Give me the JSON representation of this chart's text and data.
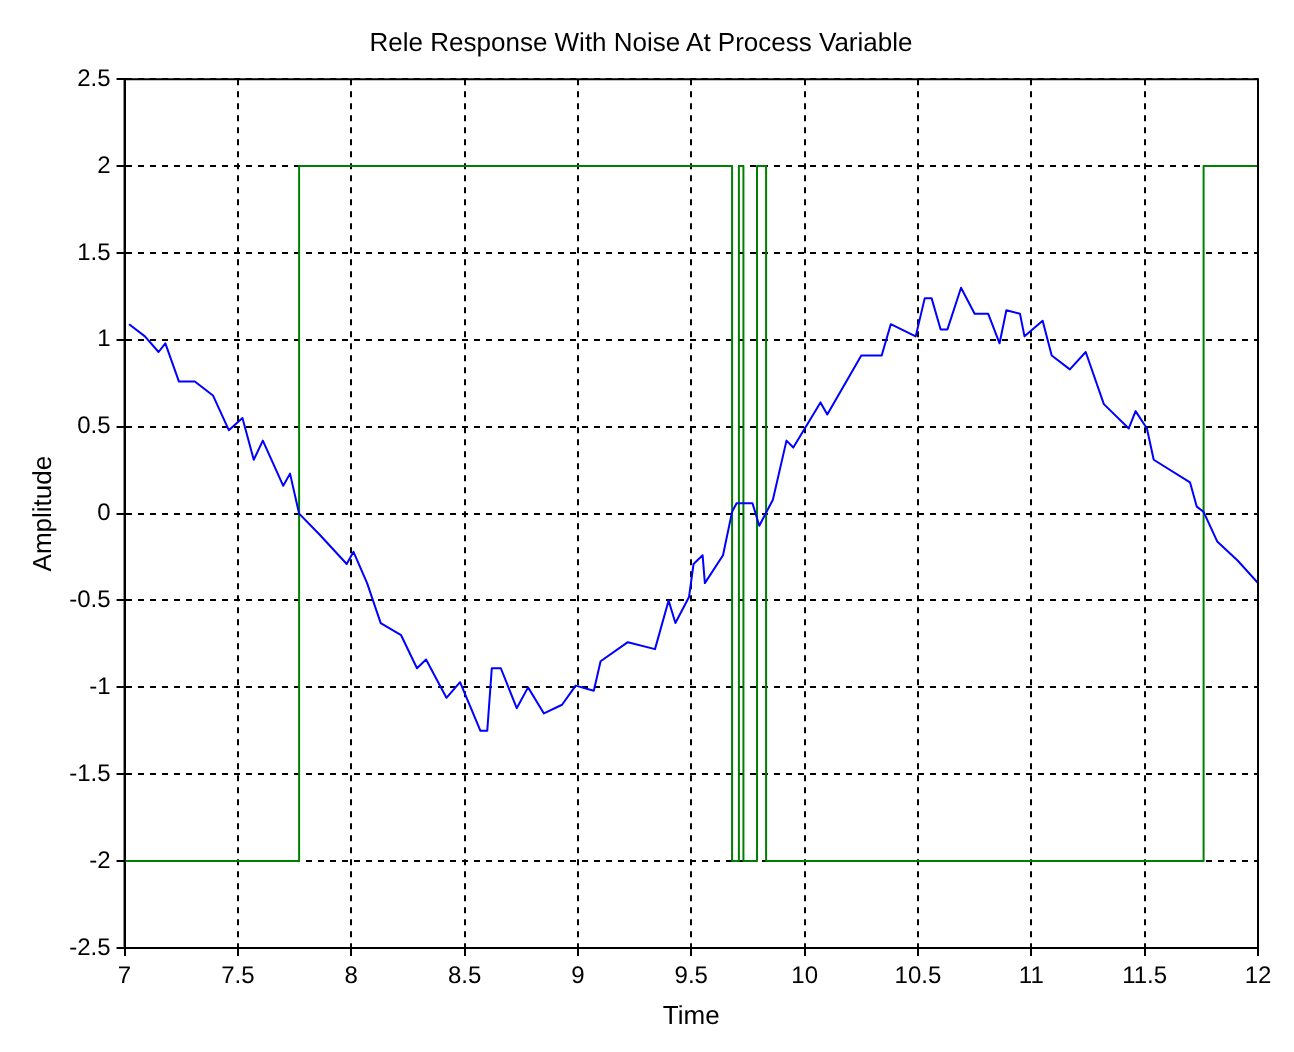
{
  "chart_data": {
    "type": "line",
    "title": "Rele Response With Noise At Process Variable",
    "xlabel": "Time",
    "ylabel": "Amplitude",
    "xlim": [
      7,
      12
    ],
    "xticks": [
      7,
      7.5,
      8,
      8.5,
      9,
      9.5,
      10,
      10.5,
      11,
      11.5,
      12
    ],
    "ylim": [
      -2.5,
      2.5
    ],
    "yticks": [
      -2.5,
      -2,
      -1.5,
      -1,
      -0.5,
      0,
      0.5,
      1,
      1.5,
      2,
      2.5
    ],
    "grid": true,
    "legend": false,
    "series": [
      {
        "type": "line",
        "color": "#0000ff",
        "x": [
          7.02,
          7.09,
          7.15,
          7.18,
          7.24,
          7.31,
          7.39,
          7.46,
          7.52,
          7.57,
          7.61,
          7.7,
          7.73,
          7.77,
          7.86,
          7.98,
          8.01,
          8.07,
          8.13,
          8.22,
          8.29,
          8.33,
          8.42,
          8.48,
          8.57,
          8.6,
          8.62,
          8.66,
          8.73,
          8.78,
          8.85,
          8.93,
          8.99,
          9.07,
          9.1,
          9.22,
          9.34,
          9.4,
          9.43,
          9.49,
          9.51,
          9.55,
          9.56,
          9.64,
          9.68,
          9.7,
          9.77,
          9.8,
          9.86,
          9.92,
          9.95,
          10.07,
          10.1,
          10.25,
          10.34,
          10.38,
          10.49,
          10.53,
          10.56,
          10.6,
          10.63,
          10.69,
          10.75,
          10.81,
          10.86,
          10.89,
          10.95,
          10.97,
          11.05,
          11.09,
          11.17,
          11.24,
          11.32,
          11.43,
          11.46,
          11.51,
          11.54,
          11.7,
          11.73,
          11.76,
          11.82,
          11.91,
          12
        ],
        "values": [
          1.09,
          1.02,
          0.93,
          0.98,
          0.76,
          0.76,
          0.68,
          0.48,
          0.55,
          0.31,
          0.42,
          0.16,
          0.23,
          0,
          -0.12,
          -0.29,
          -0.22,
          -0.4,
          -0.63,
          -0.7,
          -0.89,
          -0.84,
          -1.06,
          -0.97,
          -1.25,
          -1.25,
          -0.89,
          -0.89,
          -1.12,
          -1,
          -1.15,
          -1.1,
          -0.99,
          -1.02,
          -0.85,
          -0.74,
          -0.78,
          -0.5,
          -0.63,
          -0.48,
          -0.29,
          -0.24,
          -0.4,
          -0.24,
          0.01,
          0.06,
          0.06,
          -0.07,
          0.08,
          0.42,
          0.38,
          0.64,
          0.57,
          0.91,
          0.91,
          1.09,
          1.02,
          1.24,
          1.24,
          1.06,
          1.06,
          1.3,
          1.15,
          1.15,
          0.98,
          1.17,
          1.15,
          1.02,
          1.11,
          0.91,
          0.83,
          0.93,
          0.63,
          0.49,
          0.59,
          0.49,
          0.31,
          0.18,
          0.04,
          0.01,
          -0.16,
          -0.27,
          -0.4
        ]
      },
      {
        "type": "step",
        "color": "#008000",
        "x": [
          7,
          7.77,
          9.68,
          9.71,
          9.73,
          9.79,
          9.83,
          11.76,
          12
        ],
        "values": [
          -2,
          2,
          -2,
          2,
          -2,
          2,
          -2,
          2,
          2
        ]
      }
    ]
  }
}
